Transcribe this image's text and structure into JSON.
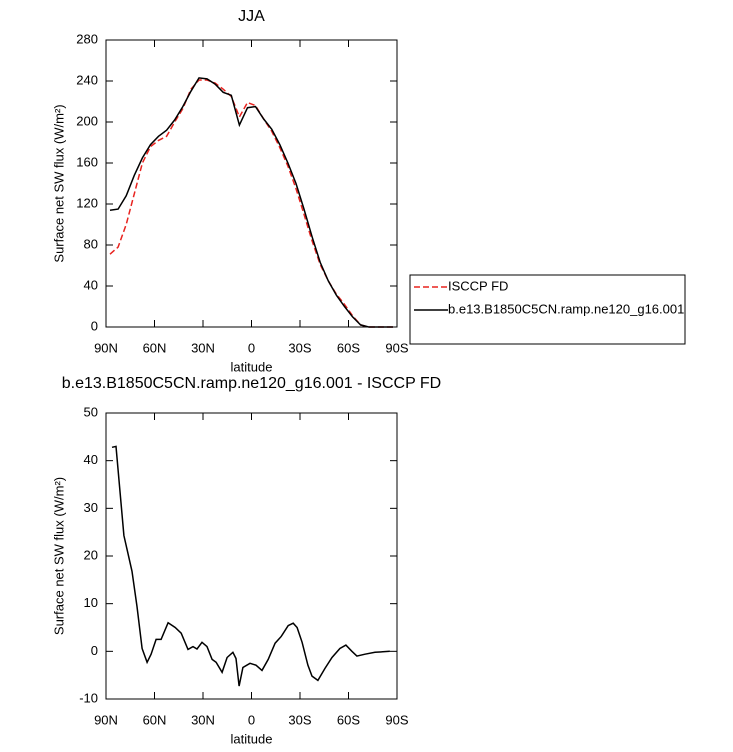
{
  "chart_data": [
    {
      "type": "line",
      "title": "JJA",
      "xlabel": "latitude",
      "ylabel": "Surface net SW flux (W/m²)",
      "x": [
        87.5,
        82.5,
        77.5,
        72.5,
        67.5,
        62.5,
        57.5,
        52.5,
        47.5,
        42.5,
        37.5,
        32.5,
        27.5,
        22.5,
        17.5,
        12.5,
        7.5,
        2.5,
        -2.5,
        -7.5,
        -12.5,
        -17.5,
        -22.5,
        -27.5,
        -32.5,
        -37.5,
        -42.5,
        -47.5,
        -52.5,
        -57.5,
        -62.5,
        -67.5,
        -72.5,
        -77.5,
        -82.5,
        -87.5
      ],
      "series": [
        {
          "name": "ISCCP FD",
          "color": "#e8231f",
          "style": "dashed",
          "values": [
            71,
            78,
            100,
            130,
            160,
            176,
            182,
            186,
            200,
            213,
            232,
            241,
            241,
            238,
            232,
            225,
            205,
            219,
            216,
            203,
            191,
            175,
            157,
            135,
            110,
            84,
            61,
            45,
            32,
            22,
            11,
            2,
            0,
            0,
            0,
            0
          ]
        },
        {
          "name": "b.e13.B1850C5CN.ramp.ne120_g16.001",
          "color": "#000000",
          "style": "solid",
          "values": [
            114,
            115,
            128,
            148,
            165,
            178,
            186,
            192,
            202,
            215,
            230,
            243,
            242,
            237,
            229,
            226,
            197,
            214,
            215,
            203,
            193,
            178,
            160,
            140,
            115,
            88,
            63,
            45,
            31,
            20,
            10,
            2,
            0,
            0,
            0,
            0
          ]
        }
      ],
      "xlim": [
        90,
        -90
      ],
      "xticks": [
        {
          "value": 90,
          "label": "90N"
        },
        {
          "value": 60,
          "label": "60N"
        },
        {
          "value": 30,
          "label": "30N"
        },
        0,
        {
          "value": -30,
          "label": "30S"
        },
        {
          "value": -60,
          "label": "60S"
        },
        {
          "value": -90,
          "label": "90S"
        }
      ],
      "ylim": [
        0,
        280
      ],
      "yticks": [
        0,
        40,
        80,
        120,
        160,
        200,
        240,
        280
      ]
    },
    {
      "type": "line",
      "title": "b.e13.B1850C5CN.ramp.ne120_g16.001 - ISCCP FD",
      "xlabel": "latitude",
      "ylabel": "Surface net SW flux (W/m²)",
      "x": [
        86.3,
        83.8,
        78.9,
        73.9,
        70.8,
        67.7,
        64.6,
        62.1,
        59.0,
        55.9,
        51.6,
        47.2,
        43.5,
        39.3,
        36.2,
        33.7,
        30.6,
        27.5,
        24.4,
        21.9,
        18.2,
        15.1,
        11.5,
        9.6,
        7.7,
        5.3,
        0.9,
        -2.8,
        -6.5,
        -10.3,
        -14.6,
        -18.3,
        -22.7,
        -25.8,
        -28.2,
        -31.3,
        -34.9,
        -37.4,
        -41.1,
        -45.4,
        -49.8,
        -54.7,
        -58.4,
        -62.1,
        -65.2,
        -70.2,
        -76.4,
        -85.6
      ],
      "color": "#000000",
      "values": [
        42.8,
        43,
        24.3,
        16.8,
        9.4,
        0.6,
        -2.3,
        -0.6,
        2.5,
        2.5,
        6,
        5,
        3.8,
        0.4,
        1,
        0.5,
        1.9,
        1,
        -1.7,
        -2.3,
        -4.4,
        -1.3,
        -0.2,
        -1.5,
        -7.3,
        -3.4,
        -2.5,
        -2.9,
        -4,
        -1.7,
        1.7,
        3.1,
        5.4,
        5.9,
        5,
        1.9,
        -2.9,
        -5.2,
        -6.1,
        -3.6,
        -1.3,
        0.6,
        1.3,
        0,
        -1,
        -0.6,
        -0.2,
        0
      ],
      "xlim": [
        90,
        -90
      ],
      "xticks": [
        {
          "value": 90,
          "label": "90N"
        },
        {
          "value": 60,
          "label": "60N"
        },
        {
          "value": 30,
          "label": "30N"
        },
        0,
        {
          "value": -30,
          "label": "30S"
        },
        {
          "value": -60,
          "label": "60S"
        },
        {
          "value": -90,
          "label": "90S"
        }
      ],
      "ylim": [
        -10,
        50
      ],
      "yticks": [
        -10,
        0,
        10,
        20,
        30,
        40,
        50
      ]
    }
  ]
}
